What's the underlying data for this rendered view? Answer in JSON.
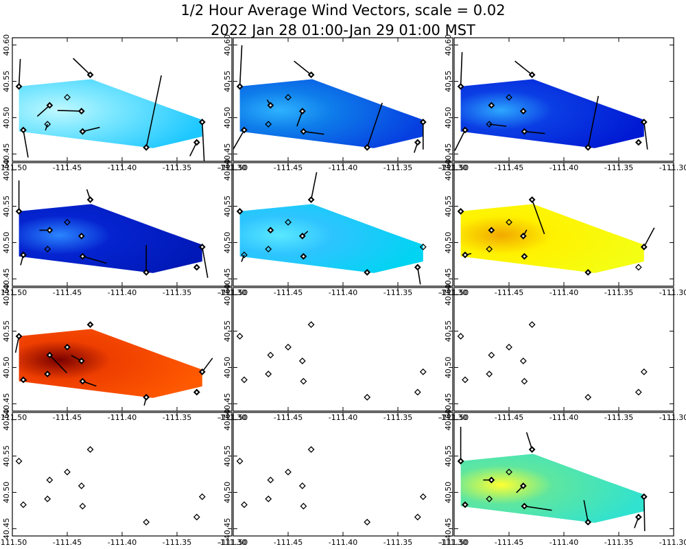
{
  "title": "1/2 Hour Average Wind Vectors, scale =  0.02",
  "subtitle": "2022 Jan 28 01:00-Jan 29 01:00 MST",
  "chart_data": {
    "type": "quiver-map-grid",
    "rows": 4,
    "cols": 3,
    "xlim": [
      -111.5,
      -111.3
    ],
    "ylim": [
      40.44,
      40.61
    ],
    "x_ticks": [
      "-111.50",
      "-111.45",
      "-111.40",
      "-111.35",
      "-111.30"
    ],
    "x_tick_values": [
      -111.5,
      -111.45,
      -111.4,
      -111.35,
      -111.3
    ],
    "y_ticks": [
      "40.45",
      "40.50",
      "40.55",
      "40.60"
    ],
    "y_tick_values": [
      40.45,
      40.5,
      40.55,
      40.6
    ],
    "stations": [
      {
        "lon": -111.494,
        "lat": 40.543
      },
      {
        "lon": -111.49,
        "lat": 40.483
      },
      {
        "lon": -111.466,
        "lat": 40.517
      },
      {
        "lon": -111.468,
        "lat": 40.491
      },
      {
        "lon": -111.45,
        "lat": 40.528
      },
      {
        "lon": -111.437,
        "lat": 40.509
      },
      {
        "lon": -111.436,
        "lat": 40.481
      },
      {
        "lon": -111.429,
        "lat": 40.559
      },
      {
        "lon": -111.378,
        "lat": 40.459
      },
      {
        "lon": -111.332,
        "lat": 40.466
      },
      {
        "lon": -111.327,
        "lat": 40.494
      }
    ],
    "field_polygon": [
      [
        -111.494,
        40.543
      ],
      [
        -111.428,
        40.553
      ],
      [
        -111.36,
        40.515
      ],
      [
        -111.327,
        40.497
      ],
      [
        -111.327,
        40.474
      ],
      [
        -111.372,
        40.458
      ],
      [
        -111.494,
        40.481
      ]
    ],
    "panels": [
      {
        "index": 1,
        "has_field": true,
        "colors": [
          "#7fe8ff",
          "#1ec8ff",
          "#c0f8ff"
        ],
        "filled": [
          true,
          true,
          true,
          false,
          false,
          true,
          true,
          true,
          true,
          true,
          true
        ],
        "vectors": [
          [
            0.2,
            4
          ],
          [
            0.7,
            -4
          ],
          [
            -1.8,
            -1.6
          ],
          [
            -0.3,
            -0.9
          ],
          [
            0,
            0
          ],
          [
            -3.5,
            0.1
          ],
          [
            2.5,
            0.6
          ],
          [
            -2.5,
            2.4
          ],
          [
            2.2,
            10.5
          ],
          [
            -1,
            -2
          ],
          [
            0.3,
            -6
          ]
        ]
      },
      {
        "index": 2,
        "has_field": true,
        "colors": [
          "#0e7dea",
          "#063ee0",
          "#2eb2ff"
        ],
        "filled": [
          true,
          true,
          true,
          false,
          false,
          true,
          true,
          true,
          true,
          true,
          true
        ],
        "vectors": [
          [
            0.3,
            6
          ],
          [
            -2,
            -3.5
          ],
          [
            -0.5,
            0.8
          ],
          [
            0,
            0
          ],
          [
            0,
            0
          ],
          [
            -0.8,
            -2.2
          ],
          [
            3,
            -0.4
          ],
          [
            -2.5,
            2
          ],
          [
            2.2,
            6.5
          ],
          [
            -0.5,
            -1.5
          ],
          [
            0,
            -4
          ]
        ]
      },
      {
        "index": 3,
        "has_field": true,
        "colors": [
          "#0b3ee4",
          "#0019d3",
          "#2da8ff"
        ],
        "filled": [
          true,
          true,
          true,
          false,
          false,
          true,
          true,
          true,
          true,
          true,
          true
        ],
        "vectors": [
          [
            0.2,
            5
          ],
          [
            -1.5,
            -3
          ],
          [
            0,
            0
          ],
          [
            2.5,
            -0.3
          ],
          [
            0,
            0
          ],
          [
            0,
            0
          ],
          [
            3,
            -0.3
          ],
          [
            -2.5,
            2
          ],
          [
            1.5,
            7.5
          ],
          [
            0,
            0
          ],
          [
            0.5,
            -4
          ]
        ]
      },
      {
        "index": 4,
        "has_field": true,
        "colors": [
          "#0524d0",
          "#0018b6",
          "#2a86ff"
        ],
        "filled": [
          true,
          true,
          true,
          false,
          false,
          true,
          true,
          true,
          true,
          true,
          true
        ],
        "vectors": [
          [
            0,
            4.5
          ],
          [
            -0.4,
            -1.5
          ],
          [
            -1.5,
            0
          ],
          [
            0,
            0
          ],
          [
            0,
            0
          ],
          [
            0,
            0
          ],
          [
            3.5,
            -1
          ],
          [
            -0.5,
            1.5
          ],
          [
            0,
            4
          ],
          [
            0,
            0
          ],
          [
            0.8,
            -4.5
          ]
        ]
      },
      {
        "index": 5,
        "has_field": true,
        "colors": [
          "#2ec4ff",
          "#00d4f2",
          "#5ae8ff"
        ],
        "filled": [
          true,
          false,
          true,
          false,
          false,
          true,
          true,
          true,
          true,
          true,
          false
        ],
        "vectors": [
          [
            0,
            0
          ],
          [
            -0.4,
            -1
          ],
          [
            0,
            0
          ],
          [
            0,
            0
          ],
          [
            0,
            0
          ],
          [
            0.8,
            0.7
          ],
          [
            0,
            0
          ],
          [
            0.8,
            4
          ],
          [
            0,
            0
          ],
          [
            0.4,
            -2.5
          ],
          [
            0,
            0
          ]
        ]
      },
      {
        "index": 6,
        "has_field": true,
        "colors": [
          "#fff200",
          "#f4ff14",
          "#f2a800"
        ],
        "filled": [
          true,
          true,
          true,
          false,
          false,
          true,
          true,
          true,
          true,
          false,
          true
        ],
        "vectors": [
          [
            0,
            0
          ],
          [
            0.9,
            0.2
          ],
          [
            0,
            0
          ],
          [
            0,
            0
          ],
          [
            0,
            0
          ],
          [
            0.5,
            0.9
          ],
          [
            0,
            0
          ],
          [
            1.8,
            -5
          ],
          [
            0,
            0
          ],
          [
            0,
            0
          ],
          [
            1.5,
            2.8
          ]
        ]
      },
      {
        "index": 7,
        "has_field": true,
        "colors": [
          "#ee3e00",
          "#ff5a00",
          "#7a0000"
        ],
        "filled": [
          true,
          true,
          true,
          true,
          true,
          true,
          true,
          true,
          true,
          true,
          true
        ],
        "vectors": [
          [
            -0.5,
            -2.4
          ],
          [
            0.5,
            -0.1
          ],
          [
            2.5,
            -2.6
          ],
          [
            0,
            0
          ],
          [
            0,
            0
          ],
          [
            -1.5,
            0.8
          ],
          [
            2,
            -0.7
          ],
          [
            0,
            0
          ],
          [
            -0.3,
            -1.2
          ],
          [
            0,
            0
          ],
          [
            1.5,
            2
          ]
        ]
      },
      {
        "index": 8,
        "has_field": false,
        "colors": [],
        "filled": [
          false,
          false,
          false,
          false,
          false,
          false,
          false,
          false,
          false,
          false,
          false
        ],
        "vectors": []
      },
      {
        "index": 9,
        "has_field": false,
        "colors": [],
        "filled": [
          false,
          false,
          false,
          false,
          false,
          false,
          false,
          false,
          false,
          false,
          false
        ],
        "vectors": []
      },
      {
        "index": 10,
        "has_field": false,
        "colors": [],
        "filled": [
          false,
          false,
          false,
          false,
          false,
          false,
          false,
          false,
          false,
          false,
          false
        ],
        "vectors": []
      },
      {
        "index": 11,
        "has_field": false,
        "colors": [],
        "filled": [
          false,
          false,
          false,
          false,
          false,
          false,
          false,
          false,
          false,
          false,
          false
        ],
        "vectors": []
      },
      {
        "index": 12,
        "has_field": true,
        "colors": [
          "#5ee6a0",
          "#30e2d0",
          "#ffff30"
        ],
        "filled": [
          true,
          true,
          true,
          false,
          false,
          true,
          true,
          true,
          true,
          true,
          true
        ],
        "vectors": [
          [
            0,
            5
          ],
          [
            0,
            0
          ],
          [
            -1.2,
            0
          ],
          [
            0,
            0
          ],
          [
            0,
            0
          ],
          [
            -1,
            -1
          ],
          [
            4,
            -0.6
          ],
          [
            -0.8,
            2.5
          ],
          [
            -0.6,
            3.2
          ],
          [
            -0.6,
            -1.6
          ],
          [
            0.1,
            -5
          ]
        ]
      }
    ]
  }
}
